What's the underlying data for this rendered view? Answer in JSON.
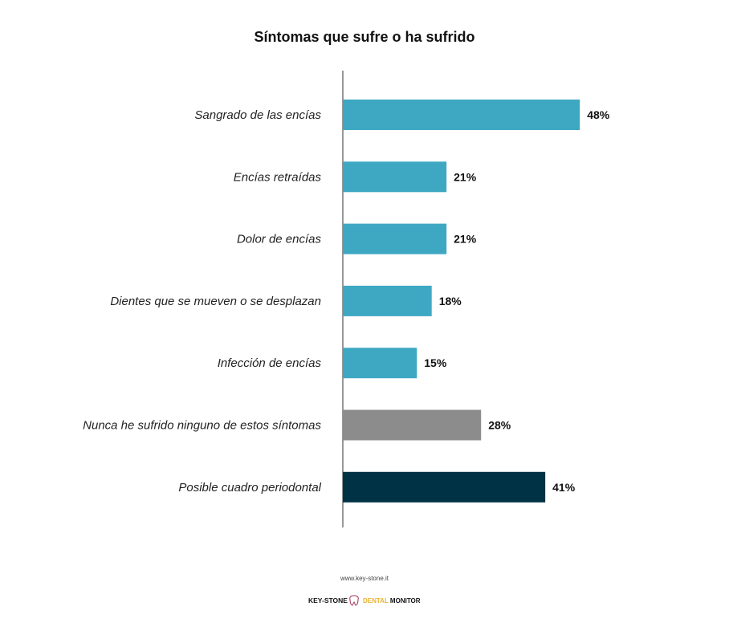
{
  "chart_data": {
    "type": "bar",
    "orientation": "horizontal",
    "title": "Síntomas que sufre o ha sufrido",
    "categories": [
      "Sangrado de las encías",
      "Encías retraídas",
      "Dolor de encías",
      "Dientes que se mueven o se desplazan",
      "Infección de encías",
      "Nunca he sufrido ninguno de estos síntomas",
      "Posible cuadro periodontal"
    ],
    "values": [
      48,
      21,
      21,
      18,
      15,
      28,
      41
    ],
    "value_labels": [
      "48%",
      "21%",
      "21%",
      "18%",
      "15%",
      "28%",
      "41%"
    ],
    "colors": [
      "#3ea8c2",
      "#3ea8c2",
      "#3ea8c2",
      "#3ea8c2",
      "#3ea8c2",
      "#8c8c8c",
      "#003245"
    ],
    "xlim": [
      0,
      100
    ],
    "grid": false,
    "legend": "none"
  },
  "footer": {
    "url": "www.key-stone.it",
    "logo_left": "KEY-STONE",
    "logo_right": "DENTAL MONITOR",
    "logo_right_colors": [
      "#e8b431",
      "#111111"
    ]
  }
}
